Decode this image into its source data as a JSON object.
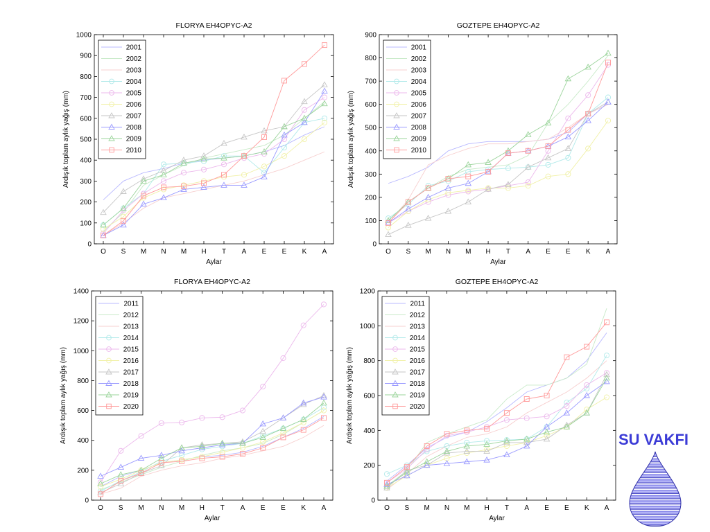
{
  "brand": {
    "name": "SU VAKFI",
    "color": "#3b3bd6"
  },
  "series_colors_a": [
    "#b8b8ff",
    "#c8eac8",
    "#f7cfcf",
    "#b2eaea",
    "#ecb8ec",
    "#f1f1a8",
    "#c6c6c6",
    "#9a9aff",
    "#9bd49b",
    "#ff9a9a"
  ],
  "series_markers": [
    "none",
    "none",
    "none",
    "circle",
    "circle",
    "circle",
    "triangle",
    "triangle",
    "triangle",
    "square"
  ],
  "chart_data": [
    {
      "type": "line",
      "title": "FLORYA EH4OPYC-A2",
      "xlabel": "Aylar",
      "ylabel": "Ardışık toplam aylık yağış (mm)",
      "categories": [
        "O",
        "S",
        "M",
        "N",
        "M",
        "H",
        "T",
        "A",
        "E",
        "E",
        "K",
        "A"
      ],
      "ylim": [
        0,
        1000
      ],
      "yticks": [
        0,
        100,
        200,
        300,
        400,
        500,
        600,
        700,
        800,
        900,
        1000
      ],
      "grid": false,
      "legend": "top-left",
      "series": [
        {
          "name": "2001",
          "values": [
            210,
            300,
            340,
            360,
            385,
            400,
            410,
            420,
            440,
            470,
            520,
            560
          ]
        },
        {
          "name": "2002",
          "values": [
            60,
            150,
            280,
            330,
            375,
            410,
            430,
            450,
            470,
            520,
            600,
            680
          ]
        },
        {
          "name": "2003",
          "values": [
            40,
            100,
            170,
            220,
            240,
            260,
            280,
            300,
            330,
            360,
            400,
            440
          ]
        },
        {
          "name": "2004",
          "values": [
            90,
            170,
            240,
            380,
            385,
            395,
            420,
            420,
            340,
            460,
            580,
            600
          ]
        },
        {
          "name": "2005",
          "values": [
            50,
            160,
            240,
            300,
            340,
            355,
            380,
            410,
            430,
            500,
            640,
            700
          ]
        },
        {
          "name": "2006",
          "values": [
            70,
            130,
            220,
            260,
            280,
            300,
            320,
            330,
            370,
            420,
            500,
            580
          ]
        },
        {
          "name": "2007",
          "values": [
            150,
            250,
            310,
            350,
            400,
            420,
            480,
            510,
            540,
            560,
            680,
            760
          ]
        },
        {
          "name": "2008",
          "values": [
            40,
            90,
            190,
            220,
            260,
            270,
            280,
            280,
            320,
            520,
            580,
            730
          ]
        },
        {
          "name": "2009",
          "values": [
            90,
            170,
            300,
            330,
            385,
            405,
            410,
            420,
            440,
            560,
            600,
            670
          ]
        },
        {
          "name": "2010",
          "values": [
            40,
            110,
            230,
            270,
            275,
            290,
            330,
            420,
            510,
            780,
            860,
            950
          ]
        }
      ]
    },
    {
      "type": "line",
      "title": "GOZTEPE EH4OPYC-A2",
      "xlabel": "Aylar",
      "ylabel": "Ardışık toplam aylık yağış (mm)",
      "categories": [
        "O",
        "S",
        "M",
        "N",
        "M",
        "H",
        "T",
        "A",
        "E",
        "E",
        "K",
        "A"
      ],
      "ylim": [
        0,
        900
      ],
      "yticks": [
        0,
        100,
        200,
        300,
        400,
        500,
        600,
        700,
        800,
        900
      ],
      "grid": false,
      "legend": "top-left",
      "series": [
        {
          "name": "2001",
          "values": [
            260,
            290,
            330,
            400,
            430,
            440,
            440,
            440,
            450,
            480,
            560,
            600
          ]
        },
        {
          "name": "2002",
          "values": [
            100,
            180,
            240,
            290,
            320,
            330,
            340,
            380,
            520,
            600,
            700,
            810
          ]
        },
        {
          "name": "2003",
          "values": [
            90,
            190,
            340,
            380,
            410,
            430,
            430,
            440,
            450,
            500,
            560,
            600
          ]
        },
        {
          "name": "2004",
          "values": [
            110,
            170,
            250,
            270,
            310,
            320,
            325,
            330,
            340,
            370,
            560,
            630
          ]
        },
        {
          "name": "2005",
          "values": [
            90,
            140,
            180,
            210,
            225,
            235,
            250,
            265,
            400,
            540,
            640,
            770
          ]
        },
        {
          "name": "2006",
          "values": [
            70,
            140,
            190,
            220,
            230,
            240,
            240,
            250,
            290,
            300,
            410,
            530
          ]
        },
        {
          "name": "2007",
          "values": [
            40,
            80,
            110,
            140,
            180,
            235,
            255,
            330,
            370,
            410,
            560,
            610
          ]
        },
        {
          "name": "2008",
          "values": [
            90,
            150,
            200,
            240,
            260,
            310,
            390,
            400,
            420,
            460,
            530,
            610
          ]
        },
        {
          "name": "2009",
          "values": [
            100,
            180,
            240,
            280,
            340,
            350,
            400,
            470,
            520,
            710,
            760,
            820
          ]
        },
        {
          "name": "2010",
          "values": [
            90,
            180,
            240,
            280,
            290,
            310,
            390,
            400,
            420,
            490,
            560,
            780
          ]
        }
      ]
    },
    {
      "type": "line",
      "title": "FLORYA EH4OPYC-A2",
      "xlabel": "Aylar",
      "ylabel": "Ardışık toplam aylık yağış (mm)",
      "categories": [
        "O",
        "S",
        "M",
        "N",
        "M",
        "H",
        "T",
        "A",
        "E",
        "E",
        "K",
        "A"
      ],
      "ylim": [
        0,
        1400
      ],
      "yticks": [
        0,
        200,
        400,
        600,
        800,
        1000,
        1200,
        1400
      ],
      "grid": false,
      "legend": "top-left",
      "series": [
        {
          "name": "2011",
          "values": [
            90,
            160,
            200,
            250,
            270,
            290,
            300,
            320,
            360,
            420,
            480,
            560
          ]
        },
        {
          "name": "2012",
          "values": [
            70,
            120,
            170,
            220,
            260,
            300,
            330,
            350,
            380,
            440,
            520,
            600
          ]
        },
        {
          "name": "2013",
          "values": [
            40,
            80,
            160,
            200,
            230,
            250,
            280,
            300,
            330,
            360,
            420,
            500
          ]
        },
        {
          "name": "2014",
          "values": [
            60,
            130,
            190,
            260,
            300,
            340,
            360,
            380,
            430,
            480,
            540,
            620
          ]
        },
        {
          "name": "2015",
          "values": [
            120,
            330,
            430,
            515,
            520,
            550,
            555,
            600,
            760,
            950,
            1170,
            1310
          ]
        },
        {
          "name": "2016",
          "values": [
            90,
            140,
            200,
            250,
            270,
            290,
            320,
            350,
            390,
            450,
            520,
            600
          ]
        },
        {
          "name": "2017",
          "values": [
            50,
            110,
            180,
            230,
            350,
            370,
            380,
            390,
            460,
            550,
            640,
            700
          ]
        },
        {
          "name": "2018",
          "values": [
            160,
            220,
            280,
            300,
            330,
            350,
            370,
            380,
            510,
            550,
            650,
            690
          ]
        },
        {
          "name": "2019",
          "values": [
            110,
            170,
            200,
            280,
            350,
            360,
            380,
            380,
            420,
            480,
            540,
            650
          ]
        },
        {
          "name": "2020",
          "values": [
            40,
            130,
            180,
            250,
            260,
            280,
            290,
            310,
            350,
            420,
            470,
            550
          ]
        }
      ]
    },
    {
      "type": "line",
      "title": "GOZTEPE EH4OPYC-A2",
      "xlabel": "Aylar",
      "ylabel": "Ardışık toplam aylık yağış (mm)",
      "categories": [
        "O",
        "S",
        "M",
        "N",
        "M",
        "H",
        "T",
        "A",
        "E",
        "E",
        "K",
        "A"
      ],
      "ylim": [
        0,
        1200
      ],
      "yticks": [
        0,
        200,
        400,
        600,
        800,
        1000,
        1200
      ],
      "grid": false,
      "legend": "top-left",
      "series": [
        {
          "name": "2011",
          "values": [
            110,
            200,
            300,
            360,
            390,
            450,
            530,
            620,
            660,
            700,
            800,
            960
          ]
        },
        {
          "name": "2012",
          "values": [
            80,
            170,
            330,
            380,
            420,
            460,
            580,
            660,
            660,
            700,
            780,
            1100
          ]
        },
        {
          "name": "2013",
          "values": [
            60,
            150,
            250,
            310,
            360,
            380,
            420,
            500,
            560,
            620,
            700,
            800
          ]
        },
        {
          "name": "2014",
          "values": [
            150,
            200,
            280,
            310,
            330,
            340,
            345,
            350,
            420,
            560,
            640,
            830
          ]
        },
        {
          "name": "2015",
          "values": [
            100,
            180,
            290,
            370,
            390,
            420,
            460,
            470,
            480,
            540,
            660,
            730
          ]
        },
        {
          "name": "2016",
          "values": [
            70,
            140,
            200,
            240,
            270,
            290,
            310,
            330,
            370,
            420,
            520,
            590
          ]
        },
        {
          "name": "2017",
          "values": [
            70,
            170,
            200,
            270,
            280,
            280,
            330,
            330,
            350,
            430,
            500,
            720
          ]
        },
        {
          "name": "2018",
          "values": [
            90,
            140,
            200,
            210,
            220,
            230,
            260,
            310,
            420,
            500,
            600,
            680
          ]
        },
        {
          "name": "2019",
          "values": [
            80,
            160,
            220,
            280,
            310,
            320,
            340,
            350,
            390,
            420,
            500,
            700
          ]
        },
        {
          "name": "2020",
          "values": [
            100,
            190,
            310,
            380,
            400,
            410,
            500,
            580,
            600,
            820,
            880,
            1020
          ]
        }
      ]
    }
  ]
}
